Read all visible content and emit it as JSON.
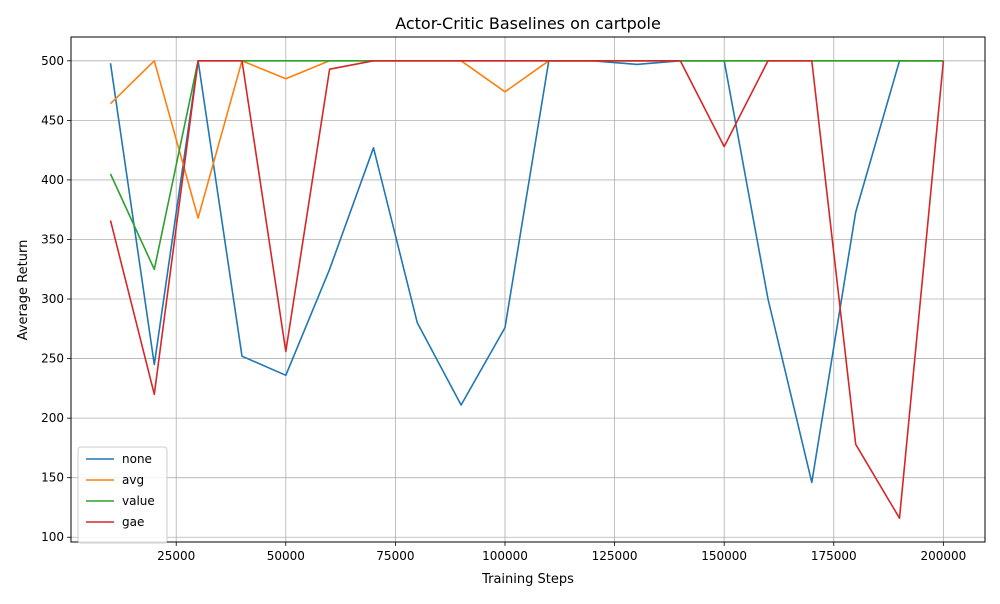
{
  "chart_data": {
    "type": "line",
    "title": "Actor-Critic Baselines on cartpole",
    "xlabel": "Training Steps",
    "ylabel": "Average Return",
    "xlim": [
      1000,
      209500
    ],
    "ylim": [
      96,
      520
    ],
    "xticks": [
      25000,
      50000,
      75000,
      100000,
      125000,
      150000,
      175000,
      200000
    ],
    "yticks": [
      100,
      150,
      200,
      250,
      300,
      350,
      400,
      450,
      500
    ],
    "grid": true,
    "legend_position": "lower-left",
    "x": [
      10000,
      20000,
      30000,
      40000,
      50000,
      60000,
      70000,
      80000,
      90000,
      100000,
      110000,
      120000,
      130000,
      140000,
      150000,
      160000,
      170000,
      180000,
      190000,
      200000
    ],
    "series": [
      {
        "name": "none",
        "color": "#1f77b4",
        "values": [
          498,
          245,
          500,
          252,
          236,
          325,
          427,
          280,
          211,
          276,
          500,
          500,
          497,
          500,
          500,
          300,
          146,
          373,
          500,
          500
        ]
      },
      {
        "name": "avg",
        "color": "#ff7f0e",
        "values": [
          464,
          500,
          368,
          500,
          485,
          500,
          500,
          500,
          500,
          474,
          500,
          500,
          500,
          500,
          500,
          500,
          500,
          500,
          500,
          500
        ]
      },
      {
        "name": "value",
        "color": "#2ca02c",
        "values": [
          405,
          325,
          500,
          500,
          500,
          500,
          500,
          500,
          500,
          500,
          500,
          500,
          500,
          500,
          500,
          500,
          500,
          500,
          500,
          500
        ]
      },
      {
        "name": "gae",
        "color": "#d62728",
        "values": [
          366,
          220,
          500,
          500,
          256,
          493,
          500,
          500,
          500,
          500,
          500,
          500,
          500,
          500,
          428,
          500,
          500,
          178,
          116,
          500
        ]
      }
    ]
  }
}
